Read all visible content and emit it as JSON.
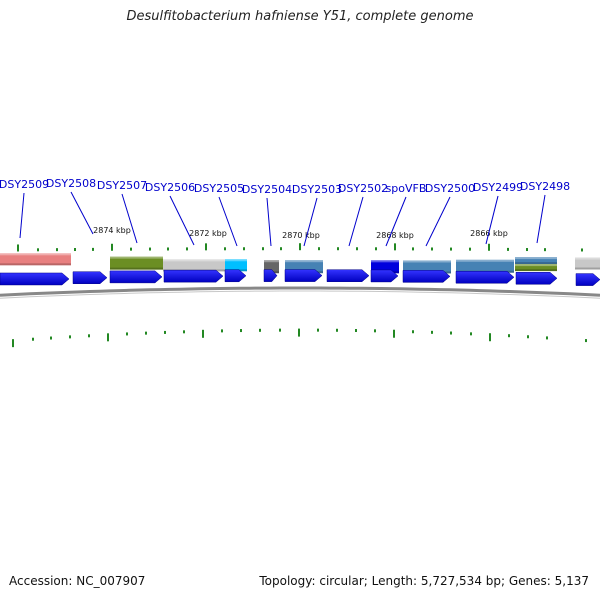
{
  "title": "Desulfitobacterium hafniense Y51, complete genome",
  "footer": {
    "accession": "Accession: NC_007907",
    "summary": "Topology: circular; Length: 5,727,534 bp; Genes: 5,137"
  },
  "colors": {
    "gene_arrow": "#0000ee",
    "gene_label": "#0000cc",
    "tick": "#228822",
    "backbone": "#888888"
  },
  "gene_labels": [
    {
      "id": "DSY2509",
      "text": "DSY2509"
    },
    {
      "id": "DSY2508",
      "text": "DSY2508"
    },
    {
      "id": "DSY2507",
      "text": "DSY2507"
    },
    {
      "id": "DSY2506",
      "text": "DSY2506"
    },
    {
      "id": "DSY2505",
      "text": "DSY2505"
    },
    {
      "id": "DSY2504",
      "text": "DSY2504"
    },
    {
      "id": "DSY2503",
      "text": "DSY2503"
    },
    {
      "id": "DSY2502",
      "text": "DSY2502"
    },
    {
      "id": "spoVFB",
      "text": "spoVFB"
    },
    {
      "id": "DSY2500",
      "text": "DSY2500"
    },
    {
      "id": "DSY2499",
      "text": "DSY2499"
    },
    {
      "id": "DSY2498",
      "text": "DSY2498"
    }
  ],
  "kbp_labels": [
    "2874 kbp",
    "2872 kbp",
    "2870 kbp",
    "2868 kbp",
    "2866 kbp"
  ],
  "feature_blocks": [
    {
      "kind": "salmon",
      "color": "#e88080"
    },
    {
      "kind": "olive",
      "color": "#6b8e23"
    },
    {
      "kind": "grey",
      "color": "#c8c8c8"
    },
    {
      "kind": "cyan",
      "color": "#00bfff"
    },
    {
      "kind": "darkgrey",
      "color": "#666666"
    },
    {
      "kind": "steelblue",
      "color": "#4682b4"
    },
    {
      "kind": "blue",
      "color": "#0000dd"
    },
    {
      "kind": "steelblue",
      "color": "#4682b4"
    },
    {
      "kind": "steelblue",
      "color": "#4682b4"
    },
    {
      "kind": "steelblue",
      "color": "#4682b4"
    },
    {
      "kind": "olive",
      "color": "#6b8e23"
    },
    {
      "kind": "grey",
      "color": "#c8c8c8"
    }
  ]
}
